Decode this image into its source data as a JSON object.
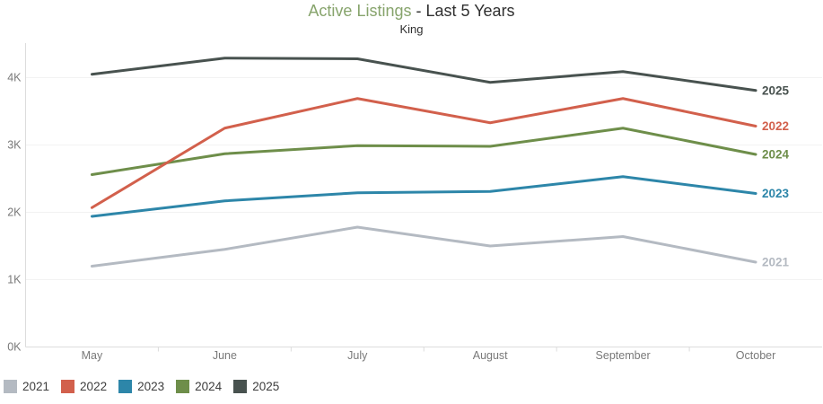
{
  "header": {
    "title_highlight": "Active Listings",
    "title_rest": " - Last 5 Years",
    "subtitle": "King"
  },
  "colors": {
    "title_highlight": "#87a46c",
    "title_text": "#2f2f2f",
    "axis_text": "#797979",
    "grid_line": "#f2f2f2",
    "axis_line": "#dcdcdc",
    "legend_text": "#3d3d3d",
    "background": "#ffffff"
  },
  "chart_data": {
    "type": "line",
    "title": "Active Listings - Last 5 Years",
    "subtitle": "King",
    "categories": [
      "May",
      "June",
      "July",
      "August",
      "September",
      "October"
    ],
    "series": [
      {
        "name": "2021",
        "color": "#b4bac2",
        "z": 1,
        "values": [
          1200,
          1450,
          1780,
          1500,
          1640,
          1260
        ]
      },
      {
        "name": "2022",
        "color": "#d2604c",
        "z": 4,
        "values": [
          2070,
          3250,
          3690,
          3330,
          3690,
          3280
        ]
      },
      {
        "name": "2023",
        "color": "#2d86a9",
        "z": 2,
        "values": [
          1940,
          2170,
          2290,
          2310,
          2530,
          2280
        ]
      },
      {
        "name": "2024",
        "color": "#6e8e4a",
        "z": 3,
        "values": [
          2560,
          2870,
          2990,
          2980,
          3250,
          2860
        ]
      },
      {
        "name": "2025",
        "color": "#48524f",
        "z": 5,
        "values": [
          4050,
          4290,
          4280,
          3930,
          4090,
          3810
        ]
      }
    ],
    "xlabel": "",
    "ylabel": "",
    "ylim": [
      0,
      4500
    ],
    "yticks": [
      {
        "label": "0K",
        "value": 0
      },
      {
        "label": "1K",
        "value": 1000
      },
      {
        "label": "2K",
        "value": 2000
      },
      {
        "label": "3K",
        "value": 3000
      },
      {
        "label": "4K",
        "value": 4000
      }
    ],
    "grid": true,
    "legend_position": "bottom-left",
    "end_labels": true
  }
}
